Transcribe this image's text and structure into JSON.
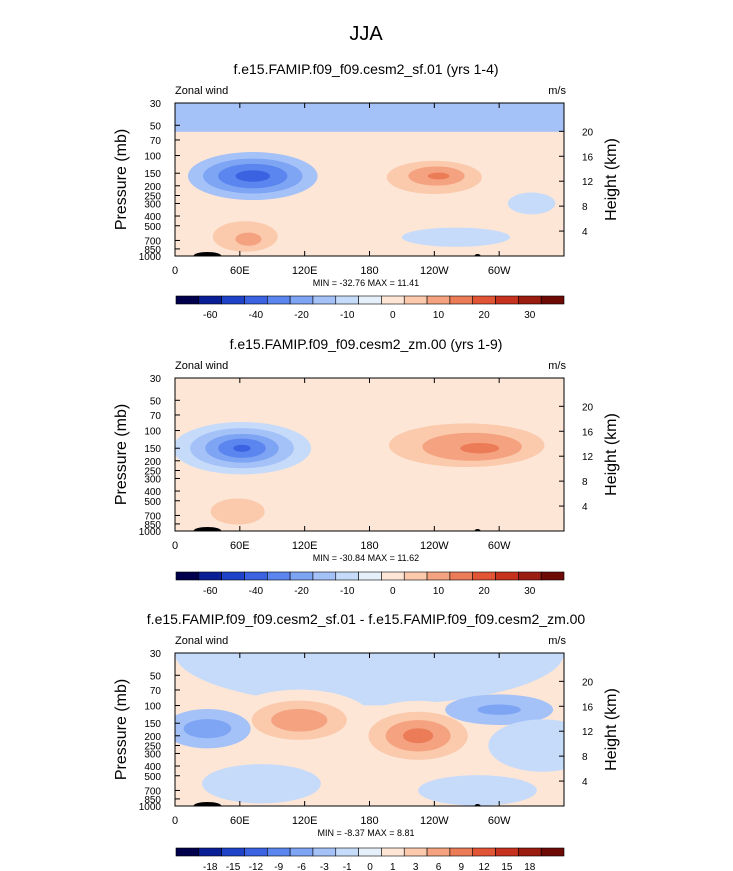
{
  "figure_title": "JJA",
  "chart_data": [
    {
      "type": "contour",
      "title": "f.e15.FAMIP.f09_f09.cesm2_sf.01 (yrs 1-4)",
      "variable_label": "Zonal wind",
      "units_label": "m/s",
      "ylabel": "Pressure (mb)",
      "ylabel_right": "Height (km)",
      "x_ticks": [
        "0",
        "60E",
        "120E",
        "180",
        "120W",
        "60W"
      ],
      "x_tick_values": [
        0,
        60,
        120,
        180,
        240,
        300
      ],
      "xlim": [
        0,
        360
      ],
      "pressure_ticks": [
        "30",
        "50",
        "70",
        "100",
        "150",
        "200",
        "250",
        "300",
        "400",
        "500",
        "700",
        "850",
        "1000"
      ],
      "pressure_tick_values": [
        30,
        50,
        70,
        100,
        150,
        200,
        250,
        300,
        400,
        500,
        700,
        850,
        1000
      ],
      "height_ticks": [
        "20",
        "16",
        "12",
        "8",
        "4"
      ],
      "height_tick_values": [
        20,
        16,
        12,
        8,
        4
      ],
      "min_max_text": "MIN = -32.76  MAX = 11.41",
      "min": -32.76,
      "max": 11.41,
      "colorbar_labels": [
        "-60",
        "-40",
        "-20",
        "-10",
        "0",
        "10",
        "20",
        "30"
      ],
      "colorbar_levels": [
        -70,
        -60,
        -50,
        -40,
        -30,
        -20,
        -15,
        -10,
        -5,
        0,
        5,
        10,
        15,
        20,
        25,
        30,
        35
      ],
      "background_level": -5,
      "features": [
        {
          "name": "easterly-jet-core",
          "lon": 72,
          "p": 160,
          "value": -32.76
        },
        {
          "name": "westerly-jet-core",
          "lon": 244,
          "p": 160,
          "value": 11.41
        },
        {
          "name": "lower-westerly",
          "lon": 68,
          "p": 650,
          "value": 6
        },
        {
          "name": "stratosphere-easterly",
          "lon": 180,
          "p": 40,
          "value": -8
        }
      ]
    },
    {
      "type": "contour",
      "title": "f.e15.FAMIP.f09_f09.cesm2_zm.00 (yrs 1-9)",
      "variable_label": "Zonal wind",
      "units_label": "m/s",
      "ylabel": "Pressure (mb)",
      "ylabel_right": "Height (km)",
      "x_ticks": [
        "0",
        "60E",
        "120E",
        "180",
        "120W",
        "60W"
      ],
      "x_tick_values": [
        0,
        60,
        120,
        180,
        240,
        300
      ],
      "xlim": [
        0,
        360
      ],
      "pressure_ticks": [
        "30",
        "50",
        "70",
        "100",
        "150",
        "200",
        "250",
        "300",
        "400",
        "500",
        "700",
        "850",
        "1000"
      ],
      "pressure_tick_values": [
        30,
        50,
        70,
        100,
        150,
        200,
        250,
        300,
        400,
        500,
        700,
        850,
        1000
      ],
      "height_ticks": [
        "20",
        "16",
        "12",
        "8",
        "4"
      ],
      "height_tick_values": [
        20,
        16,
        12,
        8,
        4
      ],
      "min_max_text": "MIN = -30.84  MAX = 11.62",
      "min": -30.84,
      "max": 11.62,
      "colorbar_labels": [
        "-60",
        "-40",
        "-20",
        "-10",
        "0",
        "10",
        "20",
        "30"
      ],
      "colorbar_levels": [
        -70,
        -60,
        -50,
        -40,
        -30,
        -20,
        -15,
        -10,
        -5,
        0,
        5,
        10,
        15,
        20,
        25,
        30,
        35
      ],
      "background_level": -5,
      "features": [
        {
          "name": "easterly-jet-core",
          "lon": 62,
          "p": 150,
          "value": -30.84
        },
        {
          "name": "westerly-jet-core",
          "lon": 280,
          "p": 150,
          "value": 11.62
        },
        {
          "name": "lower-westerly",
          "lon": 55,
          "p": 600,
          "value": 6
        },
        {
          "name": "upper-westerly",
          "lon": 200,
          "p": 90,
          "value": 2
        }
      ]
    },
    {
      "type": "contour",
      "title": "f.e15.FAMIP.f09_f09.cesm2_sf.01 - f.e15.FAMIP.f09_f09.cesm2_zm.00",
      "variable_label": "Zonal wind",
      "units_label": "m/s",
      "ylabel": "Pressure (mb)",
      "ylabel_right": "Height (km)",
      "x_ticks": [
        "0",
        "60E",
        "120E",
        "180",
        "120W",
        "60W"
      ],
      "x_tick_values": [
        0,
        60,
        120,
        180,
        240,
        300
      ],
      "xlim": [
        0,
        360
      ],
      "pressure_ticks": [
        "30",
        "50",
        "70",
        "100",
        "150",
        "200",
        "250",
        "300",
        "400",
        "500",
        "700",
        "850",
        "1000"
      ],
      "pressure_tick_values": [
        30,
        50,
        70,
        100,
        150,
        200,
        250,
        300,
        400,
        500,
        700,
        850,
        1000
      ],
      "height_ticks": [
        "20",
        "16",
        "12",
        "8",
        "4"
      ],
      "height_tick_values": [
        20,
        16,
        12,
        8,
        4
      ],
      "min_max_text": "MIN = -8.37  MAX = 8.81",
      "min": -8.37,
      "max": 8.81,
      "colorbar_labels": [
        "-18",
        "-15",
        "-12",
        "-9",
        "-6",
        "-3",
        "-1",
        "0",
        "1",
        "3",
        "6",
        "9",
        "12",
        "15",
        "18"
      ],
      "colorbar_levels": [
        -21,
        -18,
        -15,
        -12,
        -9,
        -6,
        -3,
        -1,
        0,
        1,
        3,
        6,
        9,
        12,
        15,
        18,
        21
      ],
      "background_level": 0,
      "features": [
        {
          "name": "positive-center-west",
          "lon": 115,
          "p": 140,
          "value": 6
        },
        {
          "name": "positive-center-east",
          "lon": 225,
          "p": 200,
          "value": 8.81
        },
        {
          "name": "negative-center",
          "lon": 30,
          "p": 170,
          "value": -6
        },
        {
          "name": "negative-upper",
          "lon": 300,
          "p": 110,
          "value": -8.37
        }
      ]
    }
  ],
  "colors": {
    "background": "#ffffff",
    "colormap": [
      "#00004c",
      "#0a1f96",
      "#1f43c8",
      "#3b62e0",
      "#5b85ef",
      "#7ea4f4",
      "#a4c1f8",
      "#c6dbfa",
      "#e6f0fb",
      "#fde6d6",
      "#fbc9ac",
      "#f4a280",
      "#ec7b58",
      "#e15436",
      "#c7321e",
      "#9b1c10",
      "#6e0a06"
    ],
    "topography": "#000000"
  }
}
